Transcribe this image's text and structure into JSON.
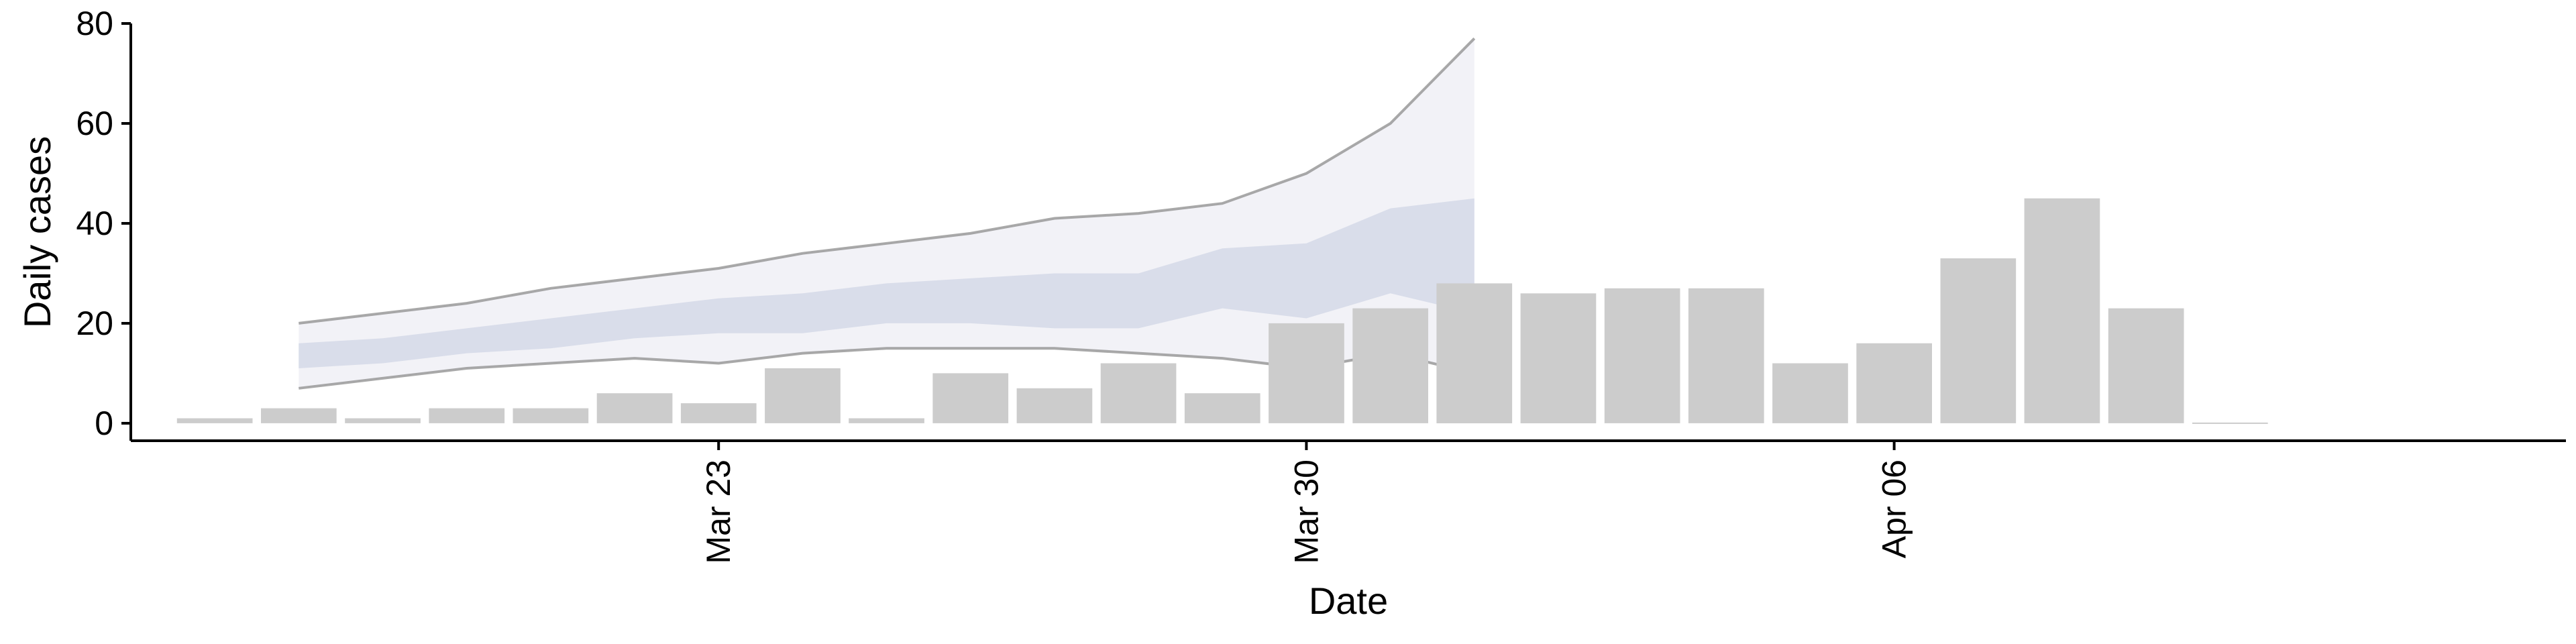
{
  "chart_data": {
    "type": "bar",
    "xlabel": "Date",
    "ylabel": "Daily cases",
    "ylim": [
      -3.5,
      80
    ],
    "xlim": [
      "2020-03-16",
      "2020-04-14"
    ],
    "yticks": [
      0,
      20,
      40,
      60,
      80
    ],
    "xticks": [
      {
        "date": "2020-03-23",
        "label": "Mar 23"
      },
      {
        "date": "2020-03-30",
        "label": "Mar 30"
      },
      {
        "date": "2020-04-06",
        "label": "Apr 06"
      }
    ],
    "grid": false,
    "colors": {
      "bar": "#cccccc",
      "band_outer": "#f0f0f6",
      "band_inner": "#d5d9e8",
      "band_edge": "#8c8c8c"
    },
    "bars": {
      "dates": [
        "2020-03-17",
        "2020-03-18",
        "2020-03-19",
        "2020-03-20",
        "2020-03-21",
        "2020-03-22",
        "2020-03-23",
        "2020-03-24",
        "2020-03-25",
        "2020-03-26",
        "2020-03-27",
        "2020-03-28",
        "2020-03-29",
        "2020-03-30",
        "2020-03-31",
        "2020-04-01",
        "2020-04-02",
        "2020-04-03",
        "2020-04-04",
        "2020-04-05",
        "2020-04-06",
        "2020-04-07",
        "2020-04-08",
        "2020-04-09",
        "2020-04-10"
      ],
      "values": [
        1,
        3,
        1,
        3,
        3,
        6,
        4,
        11,
        1,
        10,
        7,
        12,
        6,
        20,
        23,
        28,
        26,
        27,
        27,
        12,
        16,
        33,
        45,
        23,
        0
      ]
    },
    "band": {
      "dates": [
        "2020-03-18",
        "2020-03-19",
        "2020-03-20",
        "2020-03-21",
        "2020-03-22",
        "2020-03-23",
        "2020-03-24",
        "2020-03-25",
        "2020-03-26",
        "2020-03-27",
        "2020-03-28",
        "2020-03-29",
        "2020-03-30",
        "2020-03-31",
        "2020-04-01",
        "2020-04-02",
        "2020-04-03"
      ],
      "upper_outer": [
        20,
        22,
        24,
        27,
        29,
        31,
        34,
        36,
        38,
        41,
        42,
        44,
        50,
        60,
        77,
        null,
        null
      ],
      "lower_outer": [
        7,
        9,
        11,
        12,
        13,
        12,
        14,
        15,
        15,
        15,
        14,
        13,
        11,
        14,
        10,
        null,
        null
      ],
      "upper_inner": [
        16,
        17,
        19,
        21,
        23,
        25,
        26,
        28,
        29,
        30,
        30,
        35,
        36,
        43,
        45,
        null,
        null
      ],
      "lower_inner": [
        11,
        12,
        14,
        15,
        17,
        18,
        18,
        20,
        20,
        19,
        19,
        23,
        21,
        26,
        22,
        null,
        null
      ]
    }
  }
}
